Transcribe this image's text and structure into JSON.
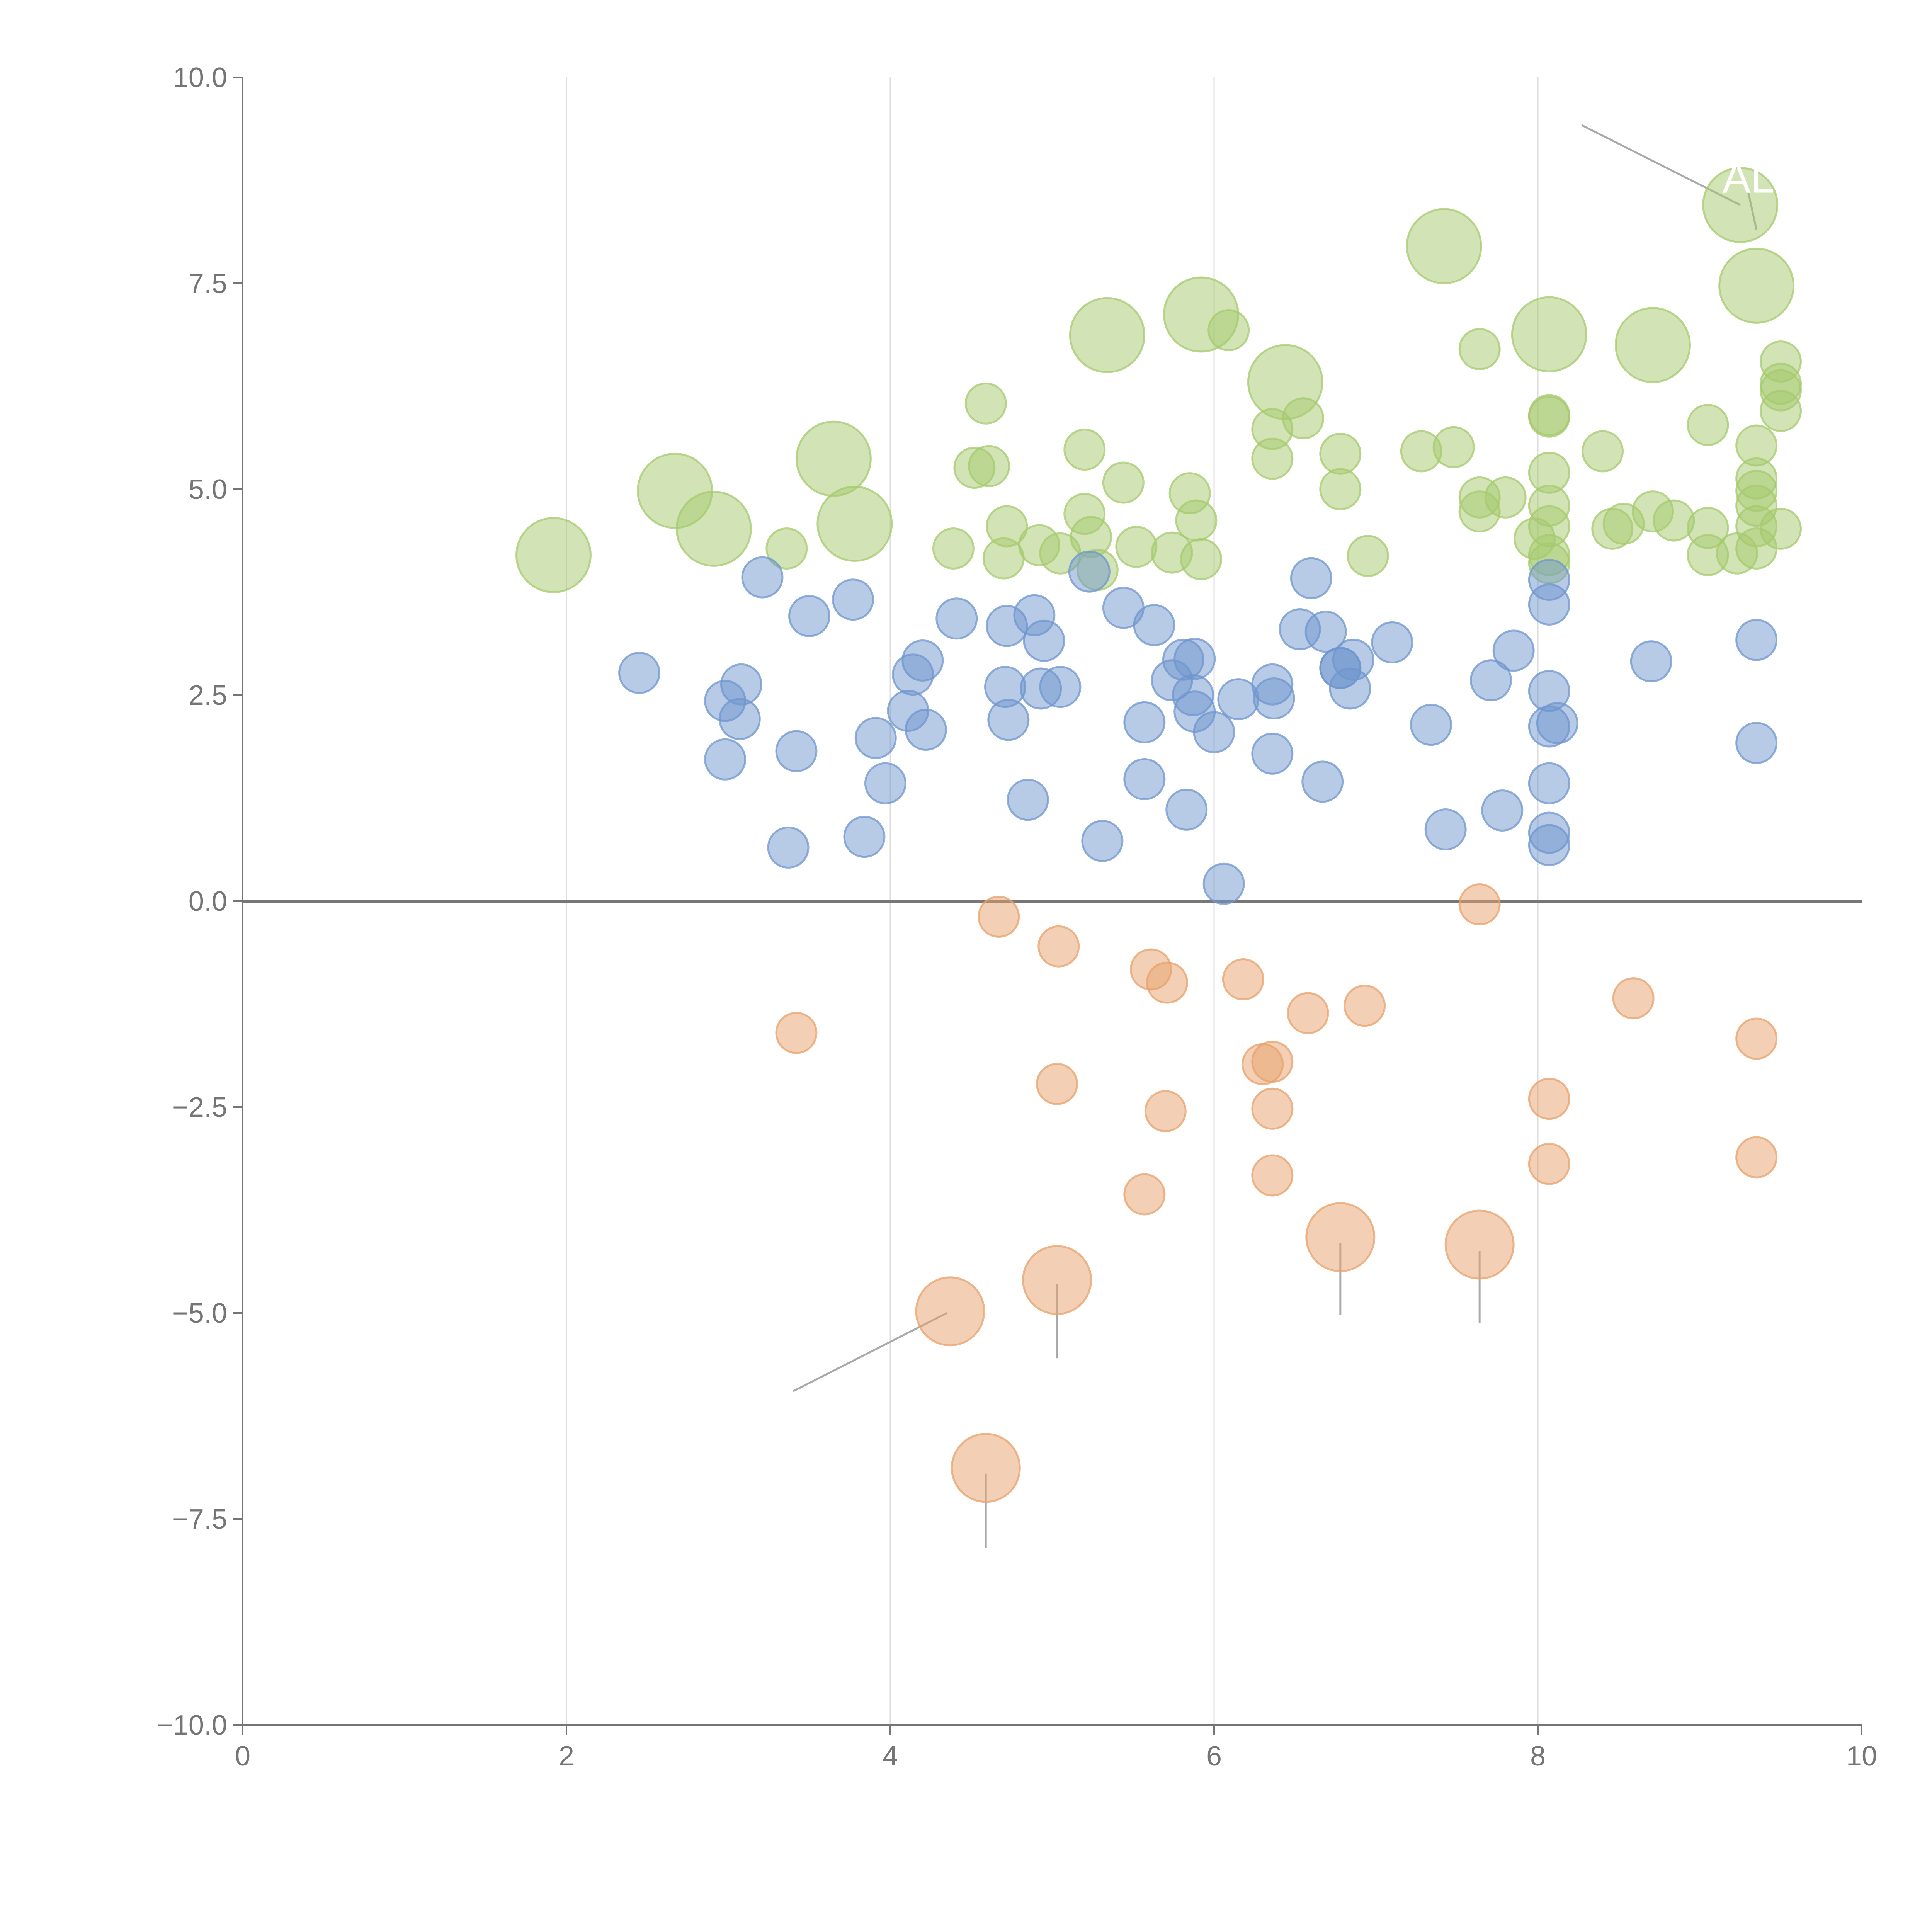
{
  "chart_data": {
    "type": "scatter",
    "title": "",
    "xlabel": "",
    "ylabel": "",
    "xlim": [
      0,
      10
    ],
    "ylim": [
      -10,
      10
    ],
    "x_ticks": [
      "0",
      "2",
      "4",
      "6",
      "8",
      "10"
    ],
    "y_ticks": [
      "10.0",
      "7.5",
      "5.0",
      "2.5",
      "0.0",
      "−2.5",
      "−5.0",
      "−7.5",
      "−10.0"
    ],
    "x_gridlines": [
      2,
      4,
      6,
      8
    ],
    "zero_line": true,
    "legend": "none",
    "colors": {
      "green": "#a5c96e",
      "blue": "#6f96cd",
      "orange": "#e7a26c",
      "axis": "#757575",
      "grid": "#dddddd",
      "zero": "#777777",
      "leader": "#aaaaaa"
    },
    "series": [
      {
        "color": "green",
        "points": [
          [
            1.92,
            4.2,
            3
          ],
          [
            2.67,
            4.98,
            3
          ],
          [
            2.91,
            4.52,
            3
          ],
          [
            3.65,
            5.37,
            3
          ],
          [
            3.78,
            4.58,
            3
          ],
          [
            5.34,
            6.87,
            3
          ],
          [
            5.92,
            7.12,
            3
          ],
          [
            6.44,
            6.3,
            3
          ],
          [
            7.42,
            7.95,
            3
          ],
          [
            8.07,
            6.88,
            3
          ],
          [
            8.71,
            6.75,
            3
          ],
          [
            9.25,
            8.45,
            3
          ],
          [
            9.35,
            7.47,
            3
          ],
          [
            3.36,
            4.28,
            1
          ],
          [
            4.39,
            4.28,
            1
          ],
          [
            4.59,
            6.04,
            1
          ],
          [
            4.52,
            5.26,
            1
          ],
          [
            4.61,
            5.28,
            1
          ],
          [
            4.7,
            4.16,
            1
          ],
          [
            4.72,
            4.55,
            1
          ],
          [
            4.92,
            4.32,
            1
          ],
          [
            5.05,
            4.22,
            1
          ],
          [
            5.2,
            5.48,
            1
          ],
          [
            5.2,
            4.7,
            1
          ],
          [
            5.24,
            4.42,
            1
          ],
          [
            5.28,
            4.02,
            1
          ],
          [
            5.44,
            5.08,
            1
          ],
          [
            5.52,
            4.3,
            1
          ],
          [
            5.74,
            4.23,
            1
          ],
          [
            5.85,
            4.95,
            1
          ],
          [
            5.89,
            4.62,
            1
          ],
          [
            5.92,
            4.15,
            1
          ],
          [
            6.09,
            6.93,
            1
          ],
          [
            6.36,
            5.73,
            1
          ],
          [
            6.36,
            5.37,
            1
          ],
          [
            6.55,
            5.86,
            1
          ],
          [
            6.78,
            5.43,
            1
          ],
          [
            6.78,
            5.0,
            1
          ],
          [
            6.95,
            4.19,
            1
          ],
          [
            7.28,
            5.46,
            1
          ],
          [
            7.48,
            5.51,
            1
          ],
          [
            7.64,
            6.7,
            1
          ],
          [
            7.64,
            4.9,
            1
          ],
          [
            7.64,
            4.73,
            1
          ],
          [
            7.8,
            4.9,
            1
          ],
          [
            7.98,
            4.4,
            1
          ],
          [
            8.07,
            5.9,
            1
          ],
          [
            8.07,
            5.88,
            1
          ],
          [
            8.07,
            5.2,
            1
          ],
          [
            8.07,
            4.8,
            1
          ],
          [
            8.07,
            4.55,
            1
          ],
          [
            8.07,
            4.2,
            1
          ],
          [
            8.07,
            4.1,
            1
          ],
          [
            8.4,
            5.46,
            1
          ],
          [
            8.46,
            4.52,
            1
          ],
          [
            8.53,
            4.58,
            1
          ],
          [
            8.71,
            4.73,
            1
          ],
          [
            8.84,
            4.62,
            1
          ],
          [
            9.05,
            5.78,
            1
          ],
          [
            9.05,
            4.53,
            1
          ],
          [
            9.05,
            4.2,
            1
          ],
          [
            9.23,
            4.22,
            1
          ],
          [
            9.35,
            5.53,
            1
          ],
          [
            9.35,
            5.13,
            1
          ],
          [
            9.35,
            4.98,
            1
          ],
          [
            9.35,
            4.8,
            1
          ],
          [
            9.35,
            4.55,
            1
          ],
          [
            9.35,
            4.28,
            1
          ],
          [
            9.5,
            6.55,
            1
          ],
          [
            9.5,
            6.28,
            1
          ],
          [
            9.5,
            6.2,
            1
          ],
          [
            9.5,
            5.95,
            1
          ],
          [
            9.5,
            4.52,
            1
          ]
        ]
      },
      {
        "color": "blue",
        "points": [
          [
            2.45,
            2.77,
            1
          ],
          [
            2.98,
            2.43,
            1
          ],
          [
            2.98,
            1.72,
            1
          ],
          [
            3.07,
            2.21,
            1
          ],
          [
            3.08,
            2.63,
            1
          ],
          [
            3.21,
            3.93,
            1
          ],
          [
            3.37,
            0.65,
            1
          ],
          [
            3.42,
            1.82,
            1
          ],
          [
            3.5,
            3.46,
            1
          ],
          [
            3.77,
            3.66,
            1
          ],
          [
            3.84,
            0.78,
            1
          ],
          [
            3.91,
            1.98,
            1
          ],
          [
            3.97,
            1.43,
            1
          ],
          [
            4.11,
            2.31,
            1
          ],
          [
            4.14,
            2.75,
            1
          ],
          [
            4.2,
            2.92,
            1
          ],
          [
            4.22,
            2.08,
            1
          ],
          [
            4.41,
            3.43,
            1
          ],
          [
            4.71,
            2.6,
            1
          ],
          [
            4.72,
            3.34,
            1
          ],
          [
            4.73,
            2.2,
            1
          ],
          [
            4.85,
            1.23,
            1
          ],
          [
            4.89,
            3.47,
            1
          ],
          [
            4.93,
            2.58,
            1
          ],
          [
            4.95,
            3.16,
            1
          ],
          [
            5.05,
            2.6,
            1
          ],
          [
            5.23,
            4.0,
            1
          ],
          [
            5.31,
            0.73,
            1
          ],
          [
            5.44,
            3.56,
            1
          ],
          [
            5.57,
            1.48,
            1
          ],
          [
            5.57,
            2.17,
            1
          ],
          [
            5.63,
            3.35,
            1
          ],
          [
            5.74,
            2.68,
            1
          ],
          [
            5.81,
            2.93,
            1
          ],
          [
            5.83,
            1.11,
            1
          ],
          [
            5.87,
            2.5,
            1
          ],
          [
            5.88,
            2.3,
            1
          ],
          [
            5.88,
            2.94,
            1
          ],
          [
            6.0,
            2.05,
            1
          ],
          [
            6.06,
            0.21,
            1
          ],
          [
            6.15,
            2.45,
            1
          ],
          [
            6.36,
            2.63,
            1
          ],
          [
            6.37,
            2.46,
            1
          ],
          [
            6.36,
            1.79,
            1
          ],
          [
            6.53,
            3.3,
            1
          ],
          [
            6.6,
            3.92,
            1
          ],
          [
            6.67,
            1.45,
            1
          ],
          [
            6.69,
            3.27,
            1
          ],
          [
            6.78,
            2.83,
            1
          ],
          [
            6.78,
            2.83,
            1
          ],
          [
            6.84,
            2.58,
            1
          ],
          [
            6.86,
            2.93,
            1
          ],
          [
            7.1,
            3.14,
            1
          ],
          [
            7.34,
            2.14,
            1
          ],
          [
            7.43,
            0.87,
            1
          ],
          [
            7.71,
            2.68,
            1
          ],
          [
            7.78,
            1.1,
            1
          ],
          [
            7.85,
            3.04,
            1
          ],
          [
            8.07,
            3.9,
            1
          ],
          [
            8.07,
            3.6,
            1
          ],
          [
            8.07,
            2.55,
            1
          ],
          [
            8.07,
            2.12,
            1
          ],
          [
            8.07,
            1.43,
            1
          ],
          [
            8.07,
            0.83,
            1
          ],
          [
            8.07,
            0.68,
            1
          ],
          [
            8.12,
            2.16,
            1
          ],
          [
            8.7,
            2.91,
            1
          ],
          [
            9.35,
            3.17,
            1
          ],
          [
            9.35,
            1.92,
            1
          ]
        ]
      },
      {
        "color": "orange",
        "points": [
          [
            4.37,
            -4.98,
            2
          ],
          [
            5.03,
            -4.6,
            2
          ],
          [
            6.78,
            -4.08,
            2
          ],
          [
            7.64,
            -4.17,
            2
          ],
          [
            4.59,
            -6.88,
            2
          ],
          [
            3.42,
            -1.6,
            1
          ],
          [
            4.67,
            -0.19,
            1
          ],
          [
            5.04,
            -0.55,
            1
          ],
          [
            5.03,
            -2.22,
            1
          ],
          [
            5.57,
            -3.56,
            1
          ],
          [
            5.61,
            -0.83,
            1
          ],
          [
            5.71,
            -0.99,
            1
          ],
          [
            5.7,
            -2.55,
            1
          ],
          [
            6.18,
            -0.95,
            1
          ],
          [
            6.3,
            -1.98,
            1
          ],
          [
            6.36,
            -1.95,
            1
          ],
          [
            6.36,
            -2.52,
            1
          ],
          [
            6.36,
            -3.33,
            1
          ],
          [
            6.58,
            -1.36,
            1
          ],
          [
            6.93,
            -1.27,
            1
          ],
          [
            7.64,
            -0.04,
            1
          ],
          [
            8.07,
            -2.4,
            1
          ],
          [
            8.07,
            -3.19,
            1
          ],
          [
            8.59,
            -1.18,
            1
          ],
          [
            9.35,
            -1.67,
            1
          ],
          [
            9.35,
            -3.11,
            1
          ]
        ]
      }
    ],
    "labels": [
      {
        "text": "AL",
        "x": 9.3,
        "y": 8.6
      }
    ],
    "leader_lines": [
      [
        8.27,
        9.42,
        9.25,
        8.45
      ],
      [
        9.35,
        8.15,
        9.3,
        8.6
      ]
    ]
  }
}
